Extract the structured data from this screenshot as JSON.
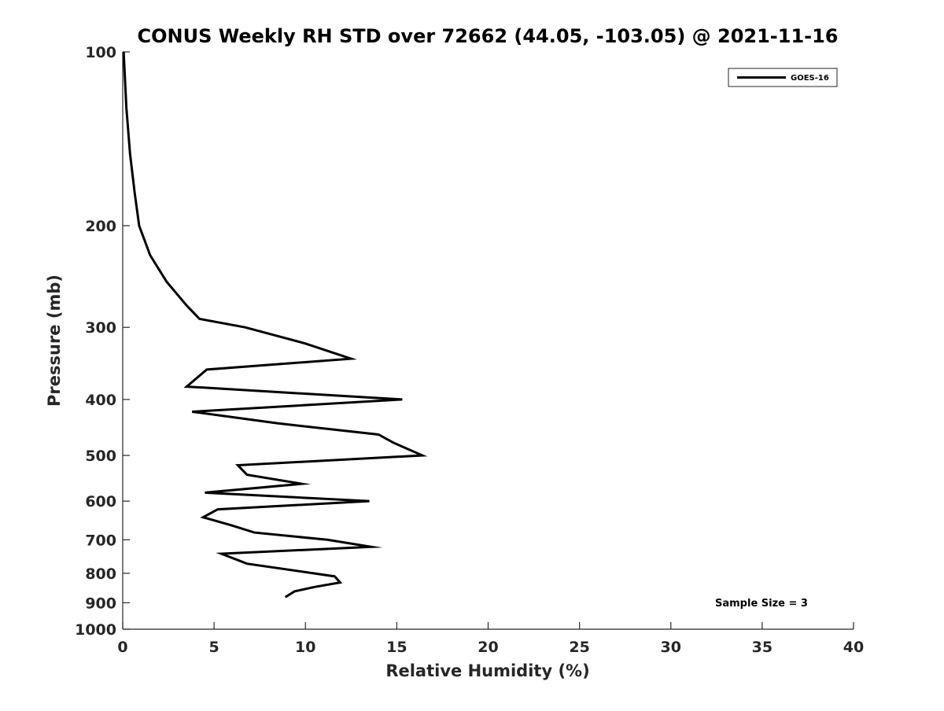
{
  "chart_data": {
    "type": "line",
    "title": "CONUS Weekly RH STD over 72662 (44.05, -103.05) @ 2021-11-16",
    "xlabel": "Relative Humidity (%)",
    "ylabel": "Pressure (mb)",
    "xlim": [
      0,
      40
    ],
    "ylim": [
      100,
      1000
    ],
    "y_scale": "log",
    "y_reversed": true,
    "xticks": [
      "0",
      "5",
      "10",
      "15",
      "20",
      "25",
      "30",
      "35",
      "40"
    ],
    "yticks": [
      "100",
      "200",
      "300",
      "400",
      "500",
      "600",
      "700",
      "800",
      "900",
      "1000"
    ],
    "grid": false,
    "legend": {
      "position": "top-right",
      "entries": [
        "GOES-16"
      ]
    },
    "annotation": "Sample Size = 3",
    "series": [
      {
        "name": "GOES-16",
        "color": "#000000",
        "points": [
          [
            0.05,
            100
          ],
          [
            0.2,
            125
          ],
          [
            0.4,
            150
          ],
          [
            0.65,
            175
          ],
          [
            0.9,
            200
          ],
          [
            1.5,
            225
          ],
          [
            2.4,
            250
          ],
          [
            3.5,
            275
          ],
          [
            4.2,
            290
          ],
          [
            6.7,
            300
          ],
          [
            10.0,
            320
          ],
          [
            12.5,
            340
          ],
          [
            4.6,
            355
          ],
          [
            3.5,
            380
          ],
          [
            15.3,
            400
          ],
          [
            3.8,
            420
          ],
          [
            8.5,
            440
          ],
          [
            14.0,
            460
          ],
          [
            14.8,
            475
          ],
          [
            16.4,
            500
          ],
          [
            6.3,
            520
          ],
          [
            6.8,
            540
          ],
          [
            9.8,
            560
          ],
          [
            4.5,
            580
          ],
          [
            13.5,
            600
          ],
          [
            5.2,
            620
          ],
          [
            4.4,
            640
          ],
          [
            5.9,
            660
          ],
          [
            7.2,
            680
          ],
          [
            11.2,
            700
          ],
          [
            13.6,
            720
          ],
          [
            5.4,
            740
          ],
          [
            6.8,
            770
          ],
          [
            11.6,
            810
          ],
          [
            11.9,
            830
          ],
          [
            10.5,
            845
          ],
          [
            9.4,
            860
          ],
          [
            8.9,
            880
          ]
        ]
      }
    ]
  }
}
